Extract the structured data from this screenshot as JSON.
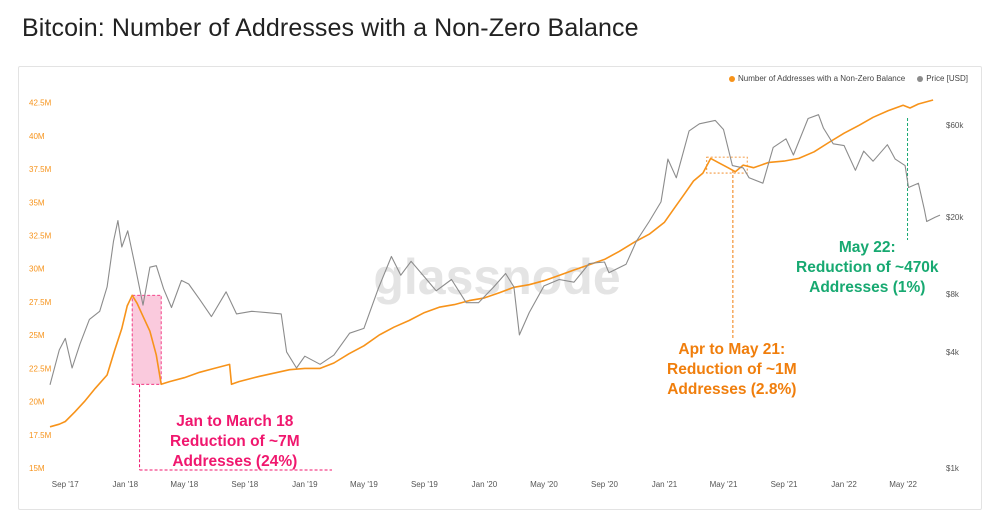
{
  "title": "Bitcoin: Number of Addresses with a Non-Zero Balance",
  "watermark": "glassnode",
  "colors": {
    "addresses": "#f7931a",
    "price": "#8c8c8c",
    "annotation_jan18": "#f0176e",
    "annotation_jan18_fill": "#f7a7c7",
    "annotation_may21": "#f07e0c",
    "annotation_may22": "#17a971"
  },
  "legend": [
    {
      "label": "Number of Addresses with a Non-Zero Balance",
      "color": "#f7931a"
    },
    {
      "label": "Price [USD]",
      "color": "#8c8c8c"
    }
  ],
  "annotations": [
    {
      "id": "jan18",
      "lines": [
        "Jan to March 18",
        "Reduction of ~7M",
        "Addresses (24%)"
      ],
      "color": "#f0176e"
    },
    {
      "id": "may21",
      "lines": [
        "Apr to May 21:",
        "Reduction of ~1M",
        "Addresses (2.8%)"
      ],
      "color": "#f07e0c"
    },
    {
      "id": "may22",
      "lines": [
        "May 22:",
        "Reduction of ~470k",
        "Addresses (1%)"
      ],
      "color": "#17a971"
    }
  ],
  "chart_data": {
    "type": "line",
    "title": "Bitcoin: Number of Addresses with a Non-Zero Balance",
    "xlim": [
      "2017-08-01",
      "2022-07-15"
    ],
    "x_ticks": [
      {
        "date": "2017-09-01",
        "label": "Sep '17"
      },
      {
        "date": "2018-01-01",
        "label": "Jan '18"
      },
      {
        "date": "2018-05-01",
        "label": "May '18"
      },
      {
        "date": "2018-09-01",
        "label": "Sep '18"
      },
      {
        "date": "2019-01-01",
        "label": "Jan '19"
      },
      {
        "date": "2019-05-01",
        "label": "May '19"
      },
      {
        "date": "2019-09-01",
        "label": "Sep '19"
      },
      {
        "date": "2020-01-01",
        "label": "Jan '20"
      },
      {
        "date": "2020-05-01",
        "label": "May '20"
      },
      {
        "date": "2020-09-01",
        "label": "Sep '20"
      },
      {
        "date": "2021-01-01",
        "label": "Jan '21"
      },
      {
        "date": "2021-05-01",
        "label": "May '21"
      },
      {
        "date": "2021-09-01",
        "label": "Sep '21"
      },
      {
        "date": "2022-01-01",
        "label": "Jan '22"
      },
      {
        "date": "2022-05-01",
        "label": "May '22"
      }
    ],
    "y_left": {
      "unit": "M",
      "ylim": [
        15,
        43
      ],
      "ticks": [
        {
          "value": 15,
          "label": "15M"
        },
        {
          "value": 17.5,
          "label": "17.5M"
        },
        {
          "value": 20,
          "label": "20M"
        },
        {
          "value": 22.5,
          "label": "22.5M"
        },
        {
          "value": 25,
          "label": "25M"
        },
        {
          "value": 27.5,
          "label": "27.5M"
        },
        {
          "value": 30,
          "label": "30M"
        },
        {
          "value": 32.5,
          "label": "32.5M"
        },
        {
          "value": 35,
          "label": "35M"
        },
        {
          "value": 37.5,
          "label": "37.5M"
        },
        {
          "value": 40,
          "label": "40M"
        },
        {
          "value": 42.5,
          "label": "42.5M"
        }
      ]
    },
    "y_right": {
      "scale": "log",
      "ylim": [
        1000,
        85000
      ],
      "ticks": [
        {
          "value": 1000,
          "label": "$1k"
        },
        {
          "value": 4000,
          "label": "$4k"
        },
        {
          "value": 8000,
          "label": "$8k"
        },
        {
          "value": 20000,
          "label": "$20k"
        },
        {
          "value": 60000,
          "label": "$60k"
        }
      ]
    },
    "series": [
      {
        "name": "Number of Addresses with a Non-Zero Balance",
        "axis": "left",
        "color": "#f7931a",
        "points": [
          [
            "2017-08-01",
            18.1
          ],
          [
            "2017-08-20",
            18.3
          ],
          [
            "2017-09-01",
            18.5
          ],
          [
            "2017-09-20",
            19.2
          ],
          [
            "2017-10-10",
            20.0
          ],
          [
            "2017-11-01",
            21.0
          ],
          [
            "2017-11-25",
            22.0
          ],
          [
            "2017-12-10",
            23.8
          ],
          [
            "2017-12-25",
            25.5
          ],
          [
            "2018-01-05",
            27.2
          ],
          [
            "2018-01-15",
            28.0
          ],
          [
            "2018-01-25",
            27.4
          ],
          [
            "2018-02-05",
            26.5
          ],
          [
            "2018-02-20",
            25.3
          ],
          [
            "2018-03-05",
            23.5
          ],
          [
            "2018-03-15",
            21.3
          ],
          [
            "2018-04-01",
            21.5
          ],
          [
            "2018-05-01",
            21.8
          ],
          [
            "2018-06-01",
            22.2
          ],
          [
            "2018-07-01",
            22.5
          ],
          [
            "2018-08-01",
            22.8
          ],
          [
            "2018-08-05",
            21.3
          ],
          [
            "2018-08-20",
            21.5
          ],
          [
            "2018-10-01",
            21.9
          ],
          [
            "2018-12-01",
            22.4
          ],
          [
            "2019-01-01",
            22.5
          ],
          [
            "2019-02-01",
            22.5
          ],
          [
            "2019-03-01",
            22.9
          ],
          [
            "2019-04-01",
            23.6
          ],
          [
            "2019-05-01",
            24.2
          ],
          [
            "2019-06-01",
            25.0
          ],
          [
            "2019-07-01",
            25.6
          ],
          [
            "2019-08-01",
            26.1
          ],
          [
            "2019-09-01",
            26.7
          ],
          [
            "2019-10-01",
            27.1
          ],
          [
            "2019-11-01",
            27.3
          ],
          [
            "2019-12-01",
            27.6
          ],
          [
            "2020-01-01",
            27.8
          ],
          [
            "2020-02-01",
            28.2
          ],
          [
            "2020-03-01",
            28.6
          ],
          [
            "2020-04-01",
            28.8
          ],
          [
            "2020-05-01",
            29.1
          ],
          [
            "2020-06-01",
            29.5
          ],
          [
            "2020-07-01",
            29.9
          ],
          [
            "2020-08-01",
            30.3
          ],
          [
            "2020-09-01",
            30.7
          ],
          [
            "2020-10-01",
            31.3
          ],
          [
            "2020-11-01",
            32.0
          ],
          [
            "2020-12-01",
            32.6
          ],
          [
            "2021-01-01",
            33.5
          ],
          [
            "2021-01-20",
            34.5
          ],
          [
            "2021-02-10",
            35.6
          ],
          [
            "2021-03-01",
            36.6
          ],
          [
            "2021-03-20",
            37.2
          ],
          [
            "2021-04-05",
            38.3
          ],
          [
            "2021-04-20",
            38.0
          ],
          [
            "2021-05-10",
            37.6
          ],
          [
            "2021-05-25",
            37.3
          ],
          [
            "2021-06-10",
            37.8
          ],
          [
            "2021-07-01",
            37.6
          ],
          [
            "2021-08-01",
            38.0
          ],
          [
            "2021-09-01",
            38.1
          ],
          [
            "2021-10-01",
            38.3
          ],
          [
            "2021-11-01",
            38.8
          ],
          [
            "2021-12-01",
            39.5
          ],
          [
            "2022-01-01",
            40.2
          ],
          [
            "2022-02-01",
            40.8
          ],
          [
            "2022-03-01",
            41.4
          ],
          [
            "2022-04-01",
            41.9
          ],
          [
            "2022-05-01",
            42.3
          ],
          [
            "2022-05-15",
            42.1
          ],
          [
            "2022-06-01",
            42.4
          ],
          [
            "2022-07-01",
            42.7
          ]
        ]
      },
      {
        "name": "Price [USD]",
        "axis": "right",
        "color": "#8c8c8c",
        "points": [
          [
            "2017-08-01",
            2700
          ],
          [
            "2017-08-20",
            4100
          ],
          [
            "2017-09-01",
            4700
          ],
          [
            "2017-09-15",
            3300
          ],
          [
            "2017-10-01",
            4400
          ],
          [
            "2017-10-20",
            5900
          ],
          [
            "2017-11-10",
            6500
          ],
          [
            "2017-11-25",
            8700
          ],
          [
            "2017-12-08",
            15000
          ],
          [
            "2017-12-17",
            19200
          ],
          [
            "2017-12-25",
            14000
          ],
          [
            "2018-01-06",
            17000
          ],
          [
            "2018-01-20",
            11500
          ],
          [
            "2018-02-06",
            7000
          ],
          [
            "2018-02-20",
            11000
          ],
          [
            "2018-03-05",
            11200
          ],
          [
            "2018-03-20",
            8500
          ],
          [
            "2018-04-05",
            6800
          ],
          [
            "2018-04-25",
            9400
          ],
          [
            "2018-05-10",
            9000
          ],
          [
            "2018-06-01",
            7500
          ],
          [
            "2018-06-25",
            6100
          ],
          [
            "2018-07-25",
            8200
          ],
          [
            "2018-08-15",
            6300
          ],
          [
            "2018-09-15",
            6500
          ],
          [
            "2018-10-15",
            6400
          ],
          [
            "2018-11-14",
            6300
          ],
          [
            "2018-11-25",
            4000
          ],
          [
            "2018-12-15",
            3300
          ],
          [
            "2019-01-01",
            3800
          ],
          [
            "2019-02-01",
            3450
          ],
          [
            "2019-03-01",
            3850
          ],
          [
            "2019-04-02",
            5000
          ],
          [
            "2019-05-01",
            5300
          ],
          [
            "2019-05-30",
            8500
          ],
          [
            "2019-06-26",
            12500
          ],
          [
            "2019-07-15",
            10000
          ],
          [
            "2019-08-05",
            11800
          ],
          [
            "2019-09-01",
            9800
          ],
          [
            "2019-09-25",
            8300
          ],
          [
            "2019-10-26",
            9500
          ],
          [
            "2019-11-25",
            7200
          ],
          [
            "2019-12-20",
            7200
          ],
          [
            "2020-01-20",
            8700
          ],
          [
            "2020-02-13",
            10200
          ],
          [
            "2020-03-01",
            8700
          ],
          [
            "2020-03-12",
            4900
          ],
          [
            "2020-04-01",
            6400
          ],
          [
            "2020-05-01",
            8800
          ],
          [
            "2020-06-01",
            9500
          ],
          [
            "2020-07-01",
            9200
          ],
          [
            "2020-08-01",
            11500
          ],
          [
            "2020-09-01",
            11700
          ],
          [
            "2020-09-10",
            10300
          ],
          [
            "2020-10-15",
            11400
          ],
          [
            "2020-11-05",
            15000
          ],
          [
            "2020-12-01",
            19000
          ],
          [
            "2020-12-25",
            24000
          ],
          [
            "2021-01-08",
            40000
          ],
          [
            "2021-01-25",
            32000
          ],
          [
            "2021-02-20",
            56000
          ],
          [
            "2021-03-13",
            61000
          ],
          [
            "2021-04-14",
            63500
          ],
          [
            "2021-05-01",
            57000
          ],
          [
            "2021-05-19",
            37000
          ],
          [
            "2021-06-10",
            36000
          ],
          [
            "2021-06-22",
            32000
          ],
          [
            "2021-07-20",
            30000
          ],
          [
            "2021-08-10",
            46000
          ],
          [
            "2021-09-05",
            51000
          ],
          [
            "2021-09-20",
            42000
          ],
          [
            "2021-10-20",
            65000
          ],
          [
            "2021-11-10",
            68000
          ],
          [
            "2021-11-20",
            58000
          ],
          [
            "2021-12-10",
            48000
          ],
          [
            "2022-01-01",
            47000
          ],
          [
            "2022-01-24",
            35000
          ],
          [
            "2022-02-10",
            44000
          ],
          [
            "2022-03-01",
            39000
          ],
          [
            "2022-03-30",
            47500
          ],
          [
            "2022-04-15",
            40000
          ],
          [
            "2022-05-05",
            37000
          ],
          [
            "2022-05-12",
            28500
          ],
          [
            "2022-06-01",
            30000
          ],
          [
            "2022-06-13",
            22000
          ],
          [
            "2022-06-18",
            19000
          ],
          [
            "2022-07-05",
            20000
          ],
          [
            "2022-07-15",
            20500
          ]
        ]
      }
    ],
    "highlights": [
      {
        "type": "box",
        "x": [
          "2018-01-15",
          "2018-03-15"
        ],
        "y_left": [
          21.3,
          28.0
        ],
        "color": "#f7a7c7"
      },
      {
        "type": "vline",
        "date": "2018-01-30",
        "color": "#f0176e"
      },
      {
        "type": "vline",
        "date": "2021-05-20",
        "color": "#f07e0c"
      },
      {
        "type": "vline",
        "date": "2022-05-10",
        "color": "#17a971"
      }
    ]
  }
}
